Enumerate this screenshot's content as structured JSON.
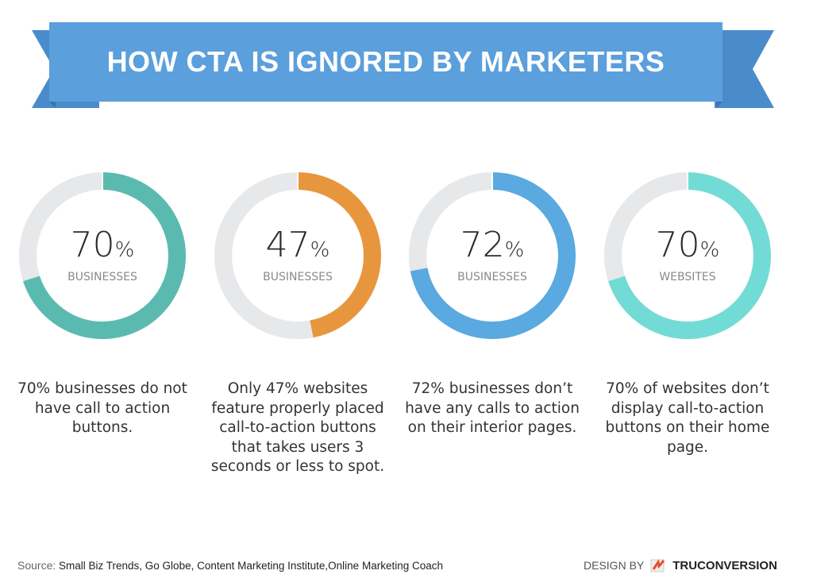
{
  "title": "HOW CTA IS IGNORED BY MARKETERS",
  "colors": {
    "banner": "#5b9fdc",
    "banner_tail": "#4a8bcc",
    "track": "#e6e8ea"
  },
  "chart_data": [
    {
      "type": "pie",
      "variant": "donut",
      "value": 70,
      "value_label": "70",
      "unit_symbol": "%",
      "label": "BUSINESSES",
      "color": "#5bbab0",
      "description": "70% businesses do not have call to action buttons."
    },
    {
      "type": "pie",
      "variant": "donut",
      "value": 47,
      "value_label": "47",
      "unit_symbol": "%",
      "label": "BUSINESSES",
      "color": "#e8963e",
      "description": "Only 47% websites feature properly placed call-to-action buttons that takes users 3 seconds or less to spot."
    },
    {
      "type": "pie",
      "variant": "donut",
      "value": 72,
      "value_label": "72",
      "unit_symbol": "%",
      "label": "BUSINESSES",
      "color": "#5aa9e0",
      "description": "72% businesses don’t have any calls to action on their interior pages."
    },
    {
      "type": "pie",
      "variant": "donut",
      "value": 70,
      "value_label": "70",
      "unit_symbol": "%",
      "label": "WEBSITES",
      "color": "#72dbd6",
      "description": "70% of websites don’t display call-to-action buttons on their home page."
    }
  ],
  "footer": {
    "source_label": "Source:",
    "sources": "Small Biz Trends, Go Globe, Content Marketing Institute,Online Marketing Coach",
    "design_by": "DESIGN BY",
    "brand": "TRUCONVERSION"
  }
}
